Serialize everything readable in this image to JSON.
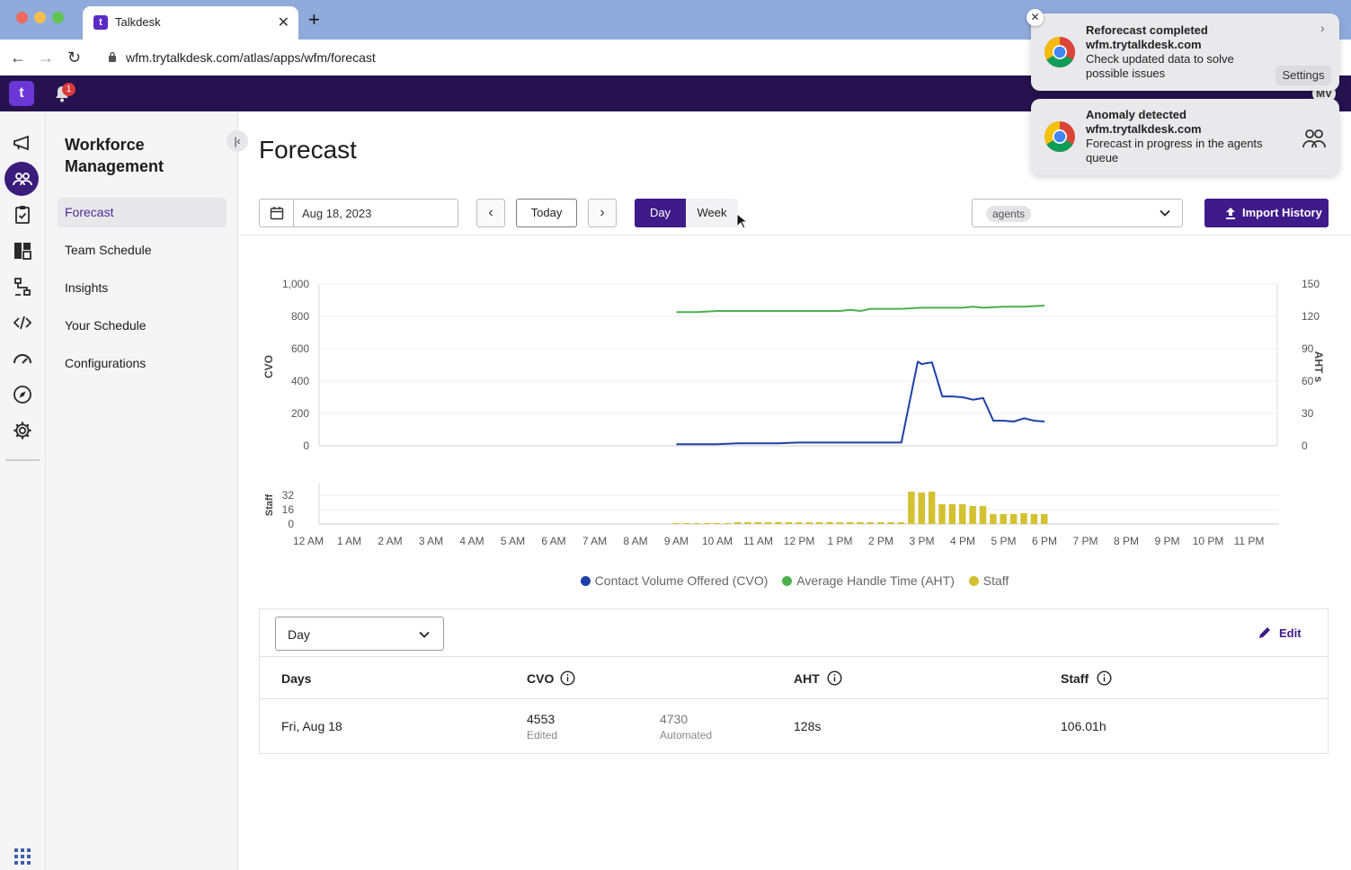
{
  "browser": {
    "tab_title": "Talkdesk",
    "tab_favicon": "t",
    "url": "wfm.trytalkdesk.com/atlas/apps/wfm/forecast"
  },
  "app": {
    "logo": "t",
    "notification_count": "1",
    "avatar": "MV"
  },
  "rail": {
    "icons": [
      "megaphone-icon",
      "agents-icon",
      "clipboard-icon",
      "dashboard-icon",
      "flow-icon",
      "code-icon",
      "speedometer-icon",
      "compass-icon",
      "gear-icon",
      "apps-grid-icon"
    ]
  },
  "sidenav": {
    "title": "Workforce Management",
    "items": [
      {
        "label": "Forecast",
        "active": true
      },
      {
        "label": "Team Schedule",
        "active": false
      },
      {
        "label": "Insights",
        "active": false
      },
      {
        "label": "Your Schedule",
        "active": false
      },
      {
        "label": "Configurations",
        "active": false
      }
    ]
  },
  "page": {
    "title": "Forecast",
    "date": "Aug 18, 2023",
    "today_label": "Today",
    "view_day": "Day",
    "view_week": "Week",
    "queue_chip": "agents",
    "import_label": "Import History"
  },
  "chart_data": {
    "type": "line",
    "x_tick_labels": [
      "12 AM",
      "1 AM",
      "2 AM",
      "3 AM",
      "4 AM",
      "5 AM",
      "6 AM",
      "7 AM",
      "8 AM",
      "9 AM",
      "10 AM",
      "11 AM",
      "12 PM",
      "1 PM",
      "2 PM",
      "3 PM",
      "4 PM",
      "5 PM",
      "6 PM",
      "7 PM",
      "8 PM",
      "9 PM",
      "10 PM",
      "11 PM"
    ],
    "left_axis": {
      "label": "CVO",
      "ticks": [
        "0",
        "200",
        "400",
        "600",
        "800",
        "1,000"
      ],
      "range": [
        0,
        1000
      ]
    },
    "right_axis": {
      "label": "AHT s",
      "ticks": [
        "0",
        "30",
        "60",
        "90",
        "120",
        "150"
      ],
      "range": [
        0,
        150
      ]
    },
    "staff_axis": {
      "label": "Staff",
      "ticks": [
        "0",
        "16",
        "32"
      ],
      "range": [
        0,
        40
      ]
    },
    "series": [
      {
        "name": "Contact Volume Offered (CVO)",
        "color": "#1e3fa8",
        "axis": "left",
        "x": [
          9,
          9.5,
          10,
          10.25,
          10.5,
          11,
          11.5,
          11.75,
          12,
          12.5,
          13,
          13.5,
          14,
          14.25,
          14.5,
          14.7,
          14.9,
          15,
          15.1,
          15.25,
          15.5,
          15.75,
          16,
          16.25,
          16.5,
          16.75,
          17,
          17.25,
          17.5,
          17.75,
          18
        ],
        "y": [
          10,
          10,
          10,
          12,
          15,
          15,
          15,
          18,
          20,
          20,
          20,
          20,
          20,
          20,
          20,
          270,
          520,
          505,
          510,
          515,
          305,
          305,
          300,
          285,
          295,
          155,
          155,
          150,
          170,
          155,
          150
        ]
      },
      {
        "name": "Average Handle Time (AHT)",
        "color": "#4caf50",
        "axis": "right",
        "x": [
          9,
          9.5,
          10,
          10.5,
          11,
          11.5,
          12,
          12.5,
          13,
          13.25,
          13.5,
          13.75,
          14,
          14.5,
          15,
          15.5,
          16,
          16.25,
          16.5,
          17,
          17.5,
          18
        ],
        "y": [
          124,
          124,
          125,
          125,
          125,
          125,
          125,
          125,
          125,
          126,
          125,
          127,
          127,
          127,
          128,
          128,
          128,
          129,
          128,
          129,
          129,
          130
        ]
      },
      {
        "name": "Staff",
        "color": "#d4c132",
        "axis": "staff",
        "type": "bar",
        "x": [
          9,
          9.25,
          9.5,
          9.75,
          10,
          10.25,
          10.5,
          10.75,
          11,
          11.25,
          11.5,
          11.75,
          12,
          12.25,
          12.5,
          12.75,
          13,
          13.25,
          13.5,
          13.75,
          14,
          14.25,
          14.5,
          14.75,
          15,
          15.25,
          15.5,
          15.75,
          16,
          16.25,
          16.5,
          16.75,
          17,
          17.25,
          17.5,
          17.75,
          18
        ],
        "y": [
          1,
          1,
          1,
          1,
          1,
          1,
          2,
          2,
          2,
          2,
          2,
          2,
          2,
          2,
          2,
          2,
          2,
          2,
          2,
          2,
          2,
          2,
          2,
          36,
          35,
          36,
          22,
          22,
          22,
          20,
          20,
          11,
          11,
          11,
          12,
          11,
          11
        ]
      }
    ]
  },
  "table": {
    "period": "Day",
    "edit_label": "Edit",
    "headers": {
      "days": "Days",
      "cvo": "CVO",
      "aht": "AHT",
      "staff": "Staff"
    },
    "row": {
      "day": "Fri, Aug 18",
      "cvo_edited": "4553",
      "cvo_edited_label": "Edited",
      "cvo_automated": "4730",
      "cvo_automated_label": "Automated",
      "aht": "128s",
      "staff": "106.01h"
    }
  },
  "notifications": [
    {
      "title": "Reforecast completed",
      "source": "wfm.trytalkdesk.com",
      "body": "Check updated data to solve possible issues",
      "action": "Settings"
    },
    {
      "title": "Anomaly detected",
      "source": "wfm.trytalkdesk.com",
      "body": "Forecast in progress in the agents queue"
    }
  ]
}
